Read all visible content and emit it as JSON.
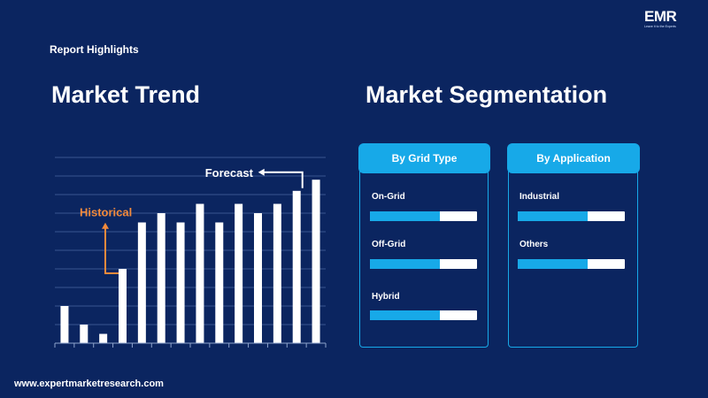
{
  "header": {
    "section_label": "Report Highlights",
    "trend_title": "Market Trend",
    "segmentation_title": "Market Segmentation",
    "logo_text": "EMR",
    "logo_tagline": "Leave it to the Experts"
  },
  "footer": {
    "url": "www.expertmarketresearch.com"
  },
  "chart_data": {
    "type": "bar",
    "values": [
      20,
      10,
      5,
      40,
      65,
      70,
      65,
      75,
      65,
      75,
      70,
      75,
      82,
      88
    ],
    "ylim": [
      0,
      100
    ],
    "grid": true,
    "color": "#ffffff",
    "annotations": [
      {
        "text": "Historical",
        "color": "#f28a3c"
      },
      {
        "text": "Forecast",
        "color": "#ffffff"
      }
    ]
  },
  "segments": [
    {
      "title": "By Grid Type",
      "items": [
        {
          "label": "On-Grid",
          "fill": 0.65
        },
        {
          "label": "Off-Grid",
          "fill": 0.65
        },
        {
          "label": "Hybrid",
          "fill": 0.65
        }
      ]
    },
    {
      "title": "By Application",
      "items": [
        {
          "label": "Industrial",
          "fill": 0.65
        },
        {
          "label": "Others",
          "fill": 0.65
        }
      ]
    }
  ],
  "colors": {
    "background": "#0b2560",
    "accent": "#17a9e8",
    "historical": "#f28a3c"
  }
}
